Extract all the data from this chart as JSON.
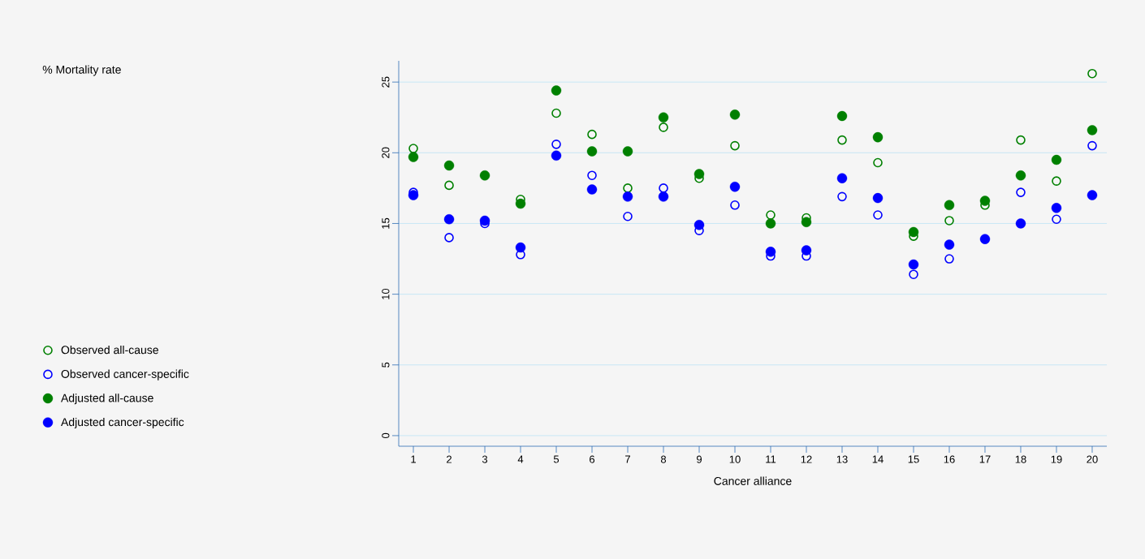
{
  "chart_data": {
    "type": "scatter",
    "xlabel": "Cancer alliance",
    "annotations": [
      "% Mortality rate"
    ],
    "categories": [
      "1",
      "2",
      "3",
      "4",
      "5",
      "6",
      "7",
      "8",
      "9",
      "10",
      "11",
      "12",
      "13",
      "14",
      "15",
      "16",
      "17",
      "18",
      "19",
      "20"
    ],
    "series": [
      {
        "name": "Observed all-cause",
        "color": "#008000",
        "values": [
          20.3,
          17.7,
          null,
          16.7,
          22.8,
          21.3,
          17.5,
          21.8,
          18.2,
          20.5,
          15.6,
          15.4,
          20.9,
          19.3,
          14.1,
          15.2,
          16.3,
          20.9,
          18.0,
          25.6
        ]
      },
      {
        "name": "Observed cancer-specific",
        "color": "#0000ff",
        "values": [
          17.2,
          14.0,
          15.0,
          12.8,
          20.6,
          18.4,
          15.5,
          17.5,
          14.5,
          16.3,
          12.7,
          12.7,
          16.9,
          15.6,
          11.4,
          12.5,
          null,
          17.2,
          15.3,
          20.5
        ]
      },
      {
        "name": "Adjusted all-cause",
        "color": "#008000",
        "values": [
          19.7,
          19.1,
          18.4,
          16.4,
          24.4,
          20.1,
          20.1,
          22.5,
          18.5,
          22.7,
          15.0,
          15.1,
          22.6,
          21.1,
          14.4,
          16.3,
          16.6,
          18.4,
          19.5,
          21.6
        ]
      },
      {
        "name": "Adjusted cancer-specific",
        "color": "#0000ff",
        "values": [
          17.0,
          15.3,
          15.2,
          13.3,
          19.8,
          17.4,
          16.9,
          16.9,
          14.9,
          17.6,
          13.0,
          13.1,
          18.2,
          16.8,
          12.1,
          13.5,
          13.9,
          15.0,
          16.1,
          17.0
        ]
      }
    ],
    "ylim": [
      -0.75,
      26.5
    ],
    "yticks": [
      0,
      5,
      10,
      15,
      20,
      25
    ],
    "grid": "y",
    "legend": "left",
    "marker": "circle"
  }
}
